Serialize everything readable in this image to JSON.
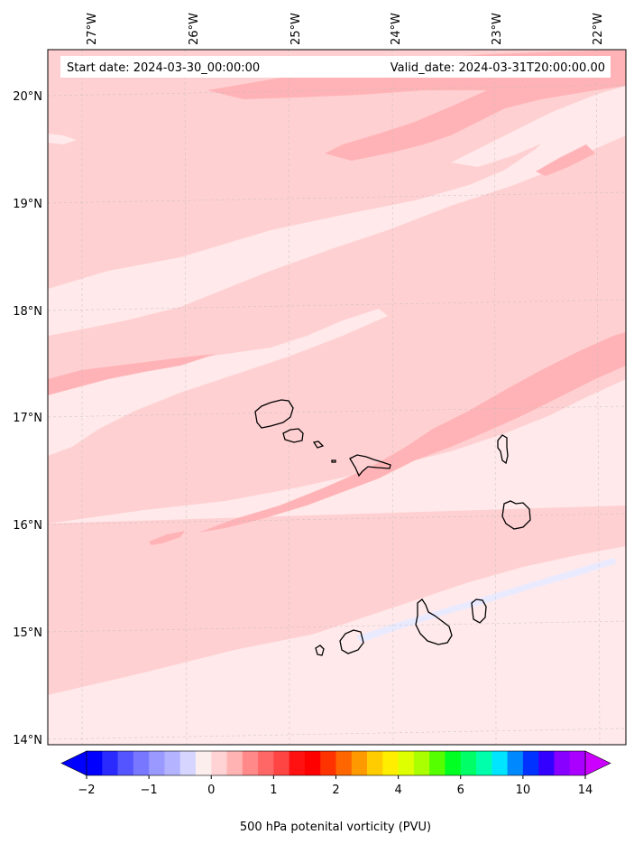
{
  "map": {
    "start_label": "Start date: 2024-03-30_00:00:00",
    "valid_label": "Valid_date: 2024-03-31T20:00:00.00",
    "lon_labels": [
      "27°W",
      "26°W",
      "25°W",
      "24°W",
      "23°W",
      "22°W"
    ],
    "lat_labels": [
      "20°N",
      "19°N",
      "18°N",
      "17°N",
      "16°N",
      "15°N",
      "14°N"
    ],
    "colorbar_label": "500 hPa potenital vorticity (PVU)",
    "colorbar_ticks": [
      "−2",
      "−1",
      "0",
      "1",
      "2",
      "4",
      "6",
      "10",
      "14"
    ],
    "colors": {
      "pale": "#ffe9ea",
      "light": "#ffd0d2",
      "medium": "#ffb3b6",
      "bluish": "#eaeaff",
      "coast": "#000000"
    }
  },
  "colorbar": {
    "under_color": "#0000ff",
    "over_color": "#cc00ff",
    "colors": [
      "#0000ff",
      "#2a2aff",
      "#5555ff",
      "#7777ff",
      "#9999ff",
      "#b3b3ff",
      "#d5d5ff",
      "#fdeeee",
      "#ffd3d3",
      "#ffb3b3",
      "#ff8888",
      "#ff6666",
      "#ff4444",
      "#ff1111",
      "#ff0000",
      "#ff3300",
      "#ff6600",
      "#ff9900",
      "#ffcc00",
      "#ffee00",
      "#ddff00",
      "#aaff00",
      "#55ff00",
      "#00ff22",
      "#00ff66",
      "#00ffaa",
      "#00e5ff",
      "#0088ff",
      "#0033ff",
      "#3300ff",
      "#8800ff",
      "#aa00ff"
    ],
    "tick_positions": [
      0,
      4,
      8,
      12,
      16,
      20,
      24,
      28,
      32
    ]
  }
}
